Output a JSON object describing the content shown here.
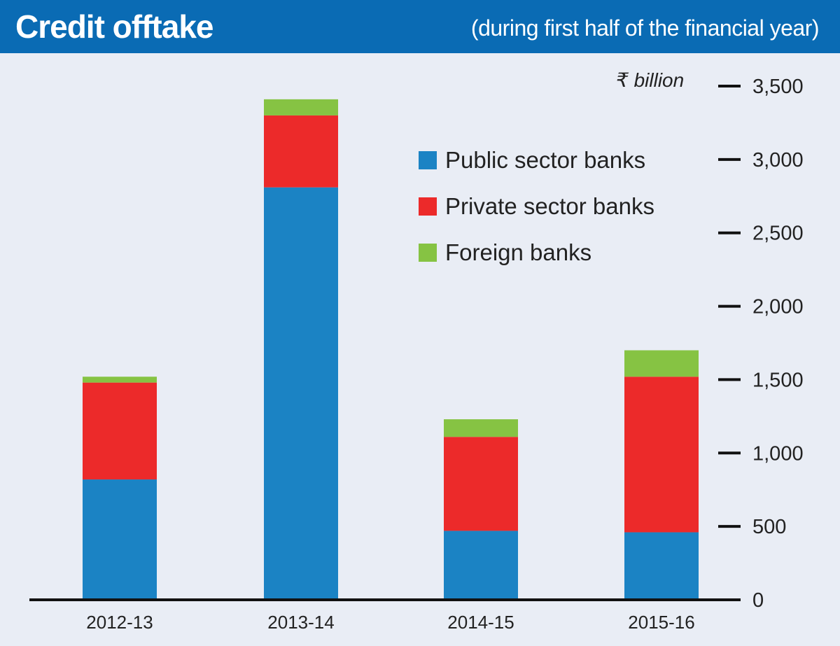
{
  "header": {
    "title": "Credit offtake",
    "subtitle": "(during first half of the financial year)"
  },
  "chart_data": {
    "type": "bar",
    "stacked": true,
    "title": "Credit offtake",
    "subtitle": "(during first half of the financial year)",
    "unit": "₹ billion",
    "categories": [
      "2012-13",
      "2013-14",
      "2014-15",
      "2015-16"
    ],
    "series": [
      {
        "name": "Public sector banks",
        "color": "#1b83c4",
        "values": [
          820,
          2810,
          470,
          460
        ]
      },
      {
        "name": "Private sector banks",
        "color": "#ec2a2a",
        "values": [
          660,
          490,
          640,
          1060
        ]
      },
      {
        "name": "Foreign banks",
        "color": "#86c343",
        "values": [
          40,
          110,
          120,
          180
        ]
      }
    ],
    "ylim": [
      0,
      3500
    ],
    "yticks": [
      0,
      500,
      1000,
      1500,
      2000,
      2500,
      3000,
      3500
    ],
    "ytick_labels": [
      "0",
      "500",
      "1,000",
      "1,500",
      "2,000",
      "2,500",
      "3,000",
      "3,500"
    ],
    "grid": false,
    "axis_side": "right",
    "legend_position": "top-right"
  }
}
